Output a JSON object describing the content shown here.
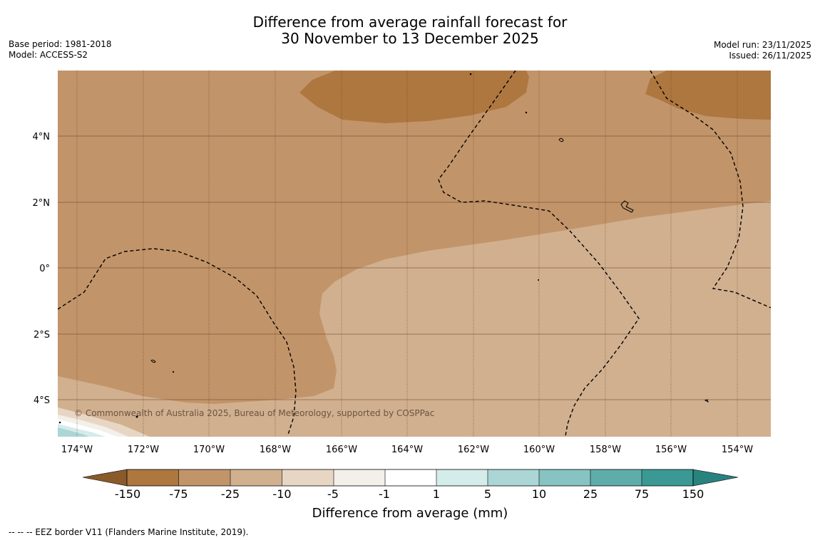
{
  "title": {
    "line1": "Difference from average rainfall forecast for",
    "line2": "30 November to 13 December 2025"
  },
  "meta": {
    "base_period": "Base period: 1981-2018",
    "model": "Model: ACCESS-S2",
    "model_run": "Model run: 23/11/2025",
    "issued": "Issued: 26/11/2025"
  },
  "map": {
    "lon_labels": [
      "174°W",
      "172°W",
      "170°W",
      "168°W",
      "166°W",
      "164°W",
      "162°W",
      "160°W",
      "158°W",
      "156°W",
      "154°W"
    ],
    "lat_labels": [
      "4°N",
      "2°N",
      "0°",
      "2°S",
      "4°S"
    ],
    "copyright": "© Commonwealth of Australia 2025, Bureau of Meteorology, supported by COSPPac"
  },
  "colorbar": {
    "title": "Difference from average (mm)",
    "labels": [
      "-150",
      "-75",
      "-25",
      "-10",
      "-5",
      "-1",
      "1",
      "5",
      "10",
      "25",
      "75",
      "150"
    ],
    "colors": {
      "lt_min": "#8a5a2b",
      "b1": "#ae7740",
      "b2": "#c29469",
      "b3": "#d1b08f",
      "b4": "#e8d6c4",
      "b5": "#f3efe9",
      "b6": "#ffffff",
      "b7": "#d4ecea",
      "b8": "#acd6d5",
      "b9": "#86c3c2",
      "b10": "#5fadab",
      "b11": "#3a9994",
      "gt_max": "#28837f"
    }
  },
  "footer": {
    "legend": "--  --  -- EEZ border V11 (Flanders Marine Institute, 2019)."
  }
}
